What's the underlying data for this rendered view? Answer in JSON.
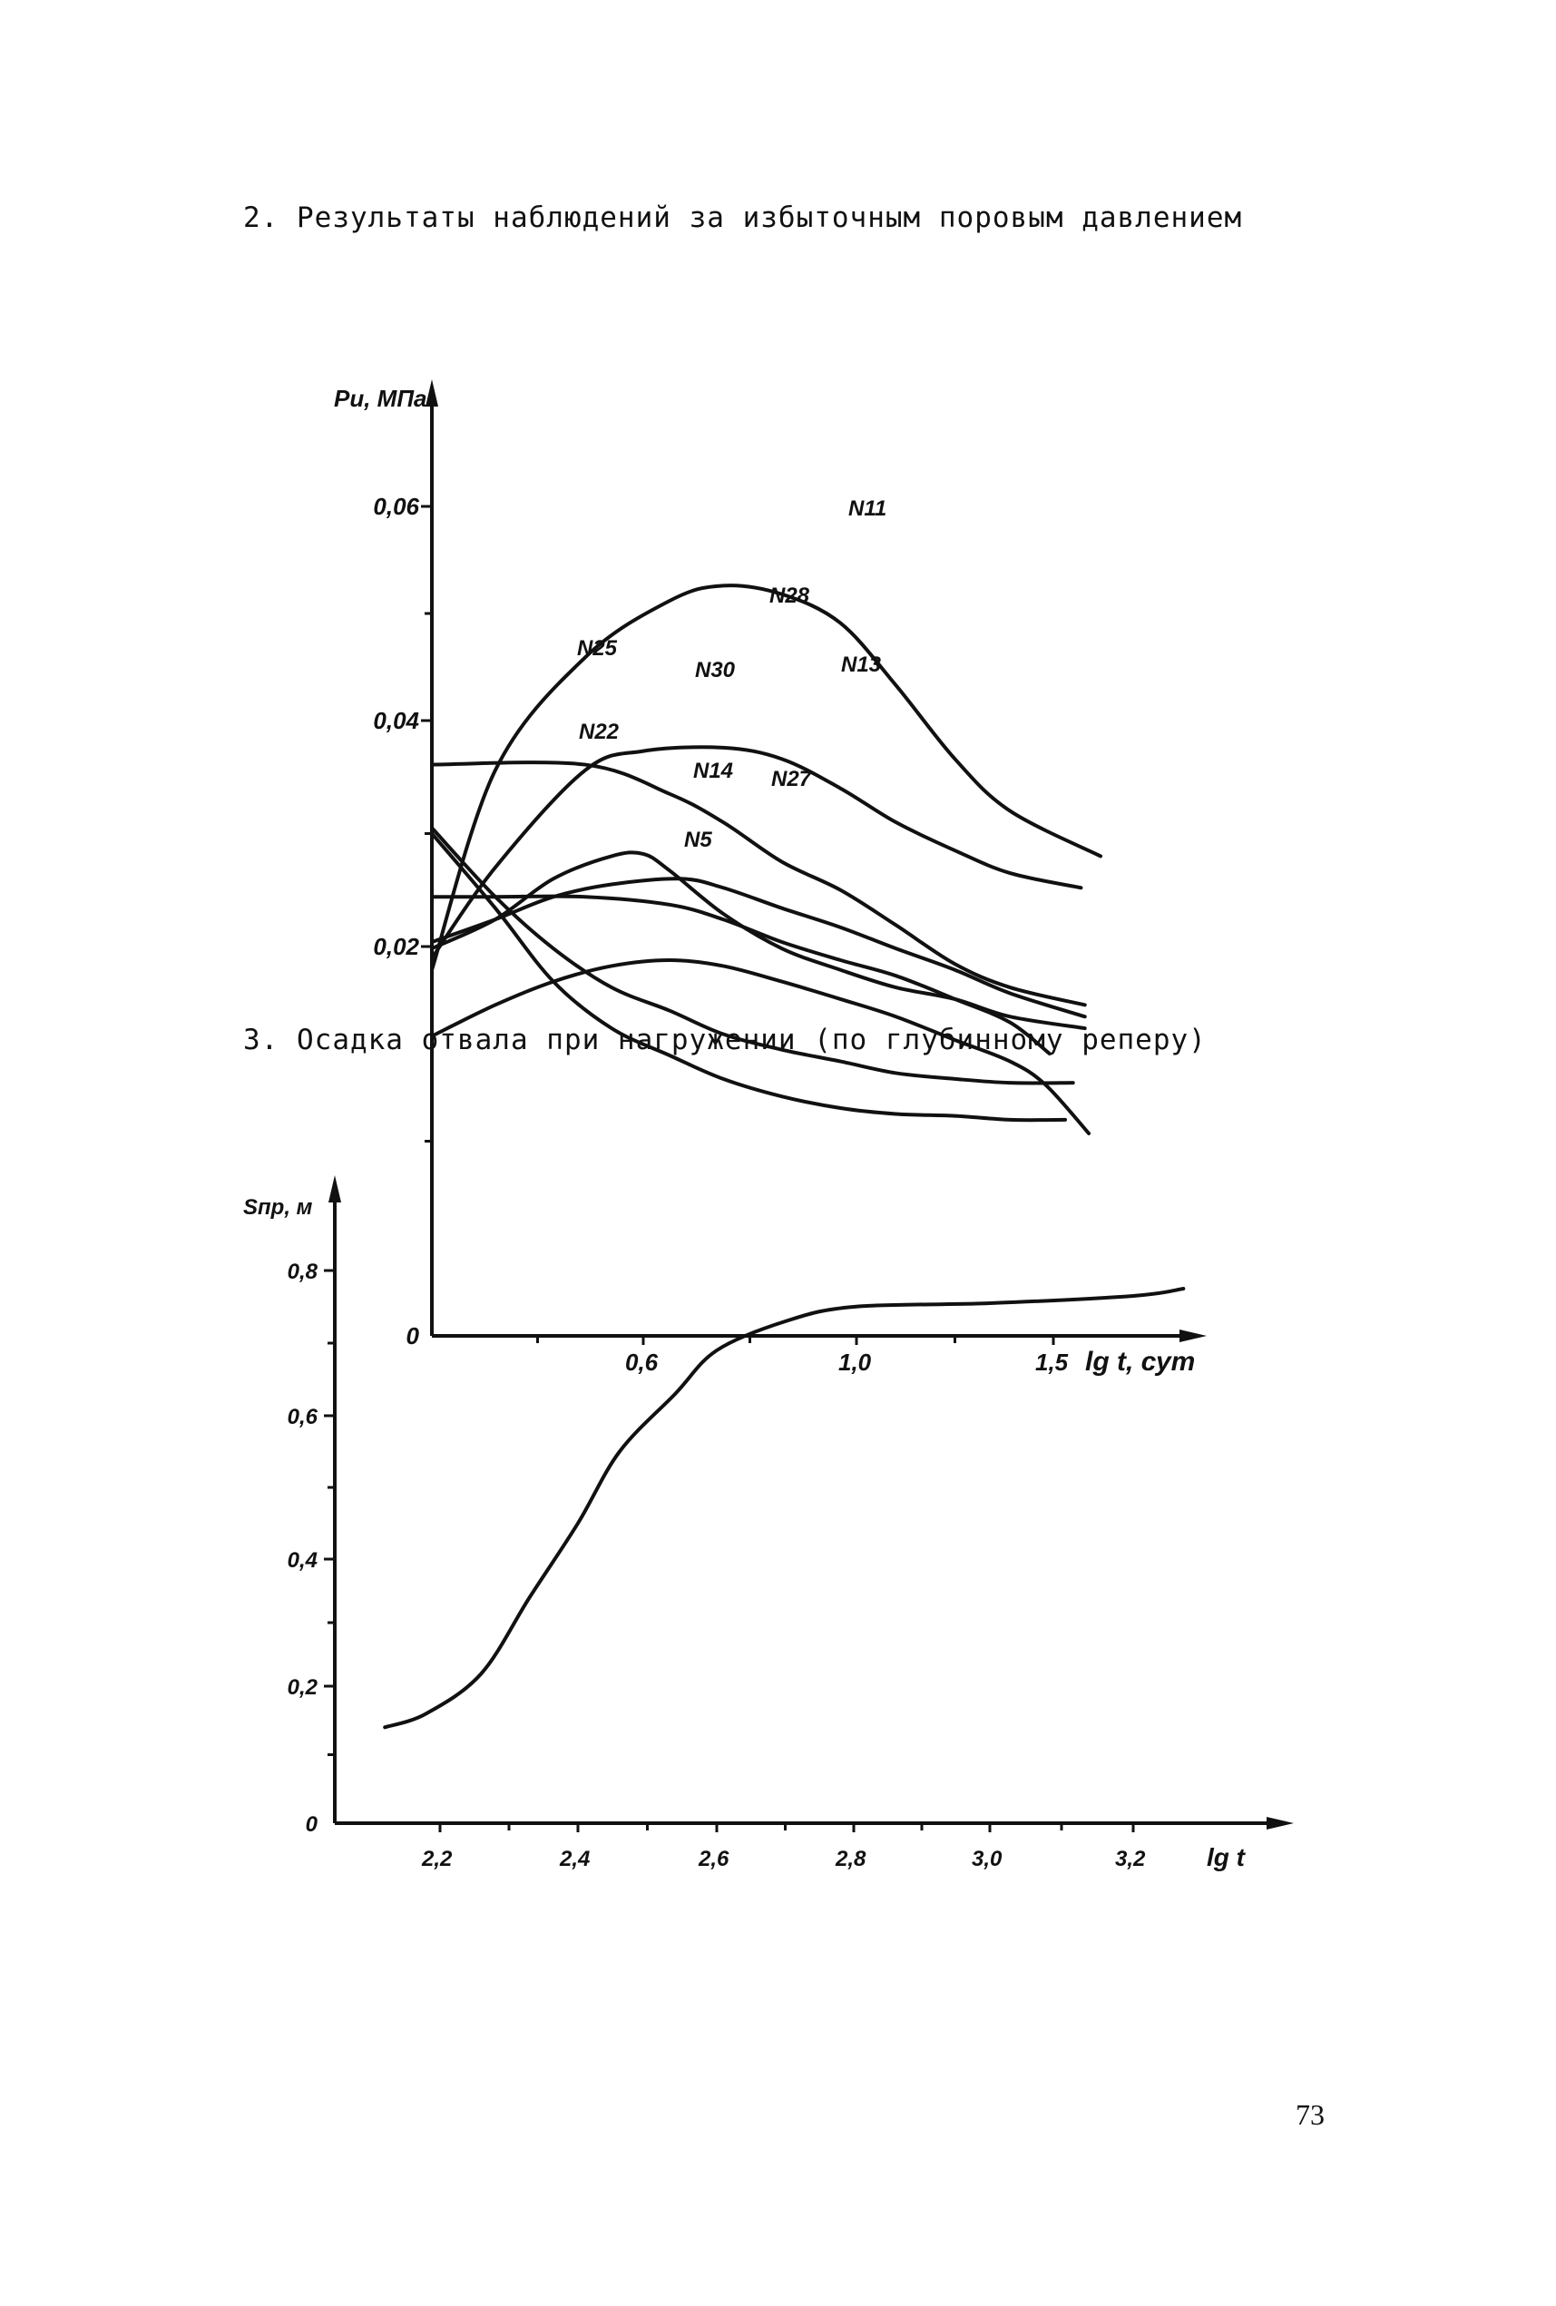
{
  "section2_title": "2. Результаты наблюдений за избыточным поровым давлением",
  "section3_title": "3. Осадка отвала при нагружении (по глубинному реперу)",
  "page_number": "73",
  "chart_data": [
    {
      "type": "line",
      "title": "Результаты наблюдений за избыточным поровым давлением",
      "xlabel": "lg t, сут",
      "ylabel": "Pи, МПа",
      "x_ticks": [
        {
          "v": 0.6,
          "label": "0,6"
        },
        {
          "v": 1.0,
          "label": "1,0"
        },
        {
          "v": 1.5,
          "label": "1,5"
        }
      ],
      "y_ticks": [
        {
          "v": 0,
          "label": "0"
        },
        {
          "v": 0.02,
          "label": "0,02"
        },
        {
          "v": 0.04,
          "label": "0,04"
        },
        {
          "v": 0.06,
          "label": "0,06"
        }
      ],
      "y_minor_ticks": [
        0.01,
        0.03,
        0.05
      ],
      "x_minor_ticks": [
        0.4,
        0.8,
        1.25
      ],
      "xlim": [
        0.2,
        1.7
      ],
      "ylim": [
        0,
        0.07
      ],
      "grid": false,
      "series": [
        {
          "name": "N11",
          "points": [
            [
              0.2,
              0.0188
            ],
            [
              0.32,
              0.0356
            ],
            [
              0.49,
              0.0459
            ],
            [
              0.65,
              0.0512
            ],
            [
              0.75,
              0.0526
            ],
            [
              0.86,
              0.0518
            ],
            [
              0.97,
              0.0491
            ],
            [
              1.1,
              0.0433
            ],
            [
              1.25,
              0.0366
            ],
            [
              1.39,
              0.032
            ],
            [
              1.62,
              0.028
            ]
          ]
        },
        {
          "name": "N28",
          "points": [
            [
              0.2,
              0.0194
            ],
            [
              0.32,
              0.027
            ],
            [
              0.49,
              0.0356
            ],
            [
              0.6,
              0.0373
            ],
            [
              0.75,
              0.0376
            ],
            [
              0.86,
              0.0366
            ],
            [
              0.97,
              0.034
            ],
            [
              1.1,
              0.031
            ],
            [
              1.25,
              0.0285
            ],
            [
              1.39,
              0.0265
            ],
            [
              1.57,
              0.0252
            ]
          ]
        },
        {
          "name": "N13",
          "points": [
            [
              0.2,
              0.0361
            ],
            [
              0.49,
              0.0361
            ],
            [
              0.65,
              0.0335
            ],
            [
              0.75,
              0.031
            ],
            [
              0.86,
              0.0275
            ],
            [
              0.97,
              0.025
            ],
            [
              1.1,
              0.0219
            ],
            [
              1.25,
              0.0191
            ],
            [
              1.39,
              0.0179
            ],
            [
              1.58,
              0.017
            ]
          ]
        },
        {
          "name": "N25",
          "points": [
            [
              0.2,
              0.0199
            ],
            [
              0.32,
              0.0224
            ],
            [
              0.43,
              0.026
            ],
            [
              0.54,
              0.028
            ],
            [
              0.6,
              0.0282
            ],
            [
              0.65,
              0.0267
            ],
            [
              0.75,
              0.0229
            ],
            [
              0.86,
              0.0199
            ],
            [
              0.97,
              0.0188
            ],
            [
              1.1,
              0.0179
            ],
            [
              1.25,
              0.0173
            ],
            [
              1.39,
              0.0164
            ],
            [
              1.58,
              0.0158
            ]
          ]
        },
        {
          "name": "N30",
          "points": [
            [
              0.2,
              0.0204
            ],
            [
              0.32,
              0.0224
            ],
            [
              0.43,
              0.0244
            ],
            [
              0.54,
              0.0255
            ],
            [
              0.67,
              0.026
            ],
            [
              0.75,
              0.0252
            ],
            [
              0.86,
              0.0234
            ],
            [
              0.97,
              0.0217
            ],
            [
              1.1,
              0.0199
            ],
            [
              1.25,
              0.0188
            ],
            [
              1.39,
              0.0176
            ],
            [
              1.58,
              0.0164
            ]
          ]
        },
        {
          "name": "N22",
          "points": [
            [
              0.2,
              0.0244
            ],
            [
              0.32,
              0.0244
            ],
            [
              0.49,
              0.0244
            ],
            [
              0.65,
              0.0237
            ],
            [
              0.75,
              0.0224
            ],
            [
              0.86,
              0.0204
            ],
            [
              0.97,
              0.0193
            ],
            [
              1.1,
              0.0185
            ],
            [
              1.25,
              0.0173
            ],
            [
              1.39,
              0.0161
            ],
            [
              1.49,
              0.0145
            ]
          ]
        },
        {
          "name": "N14",
          "points": [
            [
              0.2,
              0.0305
            ],
            [
              0.32,
              0.0244
            ],
            [
              0.43,
              0.0199
            ],
            [
              0.54,
              0.0179
            ],
            [
              0.65,
              0.0167
            ],
            [
              0.75,
              0.0155
            ],
            [
              0.86,
              0.0147
            ],
            [
              0.97,
              0.0141
            ],
            [
              1.1,
              0.0135
            ],
            [
              1.25,
              0.0132
            ],
            [
              1.39,
              0.013
            ],
            [
              1.55,
              0.013
            ]
          ]
        },
        {
          "name": "N27",
          "points": [
            [
              0.2,
              0.0154
            ],
            [
              0.32,
              0.017
            ],
            [
              0.43,
              0.0182
            ],
            [
              0.54,
              0.019
            ],
            [
              0.65,
              0.0193
            ],
            [
              0.75,
              0.019
            ],
            [
              0.86,
              0.0182
            ],
            [
              0.97,
              0.0173
            ],
            [
              1.1,
              0.0164
            ],
            [
              1.25,
              0.0152
            ],
            [
              1.39,
              0.0141
            ],
            [
              1.48,
              0.0129
            ],
            [
              1.59,
              0.0104
            ]
          ]
        },
        {
          "name": "N5",
          "points": [
            [
              0.2,
              0.03
            ],
            [
              0.32,
              0.0234
            ],
            [
              0.43,
              0.0182
            ],
            [
              0.54,
              0.0158
            ],
            [
              0.65,
              0.0144
            ],
            [
              0.75,
              0.0132
            ],
            [
              0.86,
              0.0123
            ],
            [
              0.97,
              0.0117
            ],
            [
              1.1,
              0.0114
            ],
            [
              1.25,
              0.0113
            ],
            [
              1.39,
              0.0111
            ],
            [
              1.53,
              0.0111
            ]
          ]
        }
      ]
    },
    {
      "type": "line",
      "title": "Осадка отвала при нагружении (по глубинному реперу)",
      "xlabel": "lg t",
      "ylabel": "Sпр, м",
      "x_ticks": [
        {
          "v": 2.2,
          "label": "2,2"
        },
        {
          "v": 2.4,
          "label": "2,4"
        },
        {
          "v": 2.6,
          "label": "2,6"
        },
        {
          "v": 2.8,
          "label": "2,8"
        },
        {
          "v": 3.0,
          "label": "3,0"
        },
        {
          "v": 3.2,
          "label": "3,2"
        }
      ],
      "y_ticks": [
        {
          "v": 0,
          "label": "0"
        },
        {
          "v": 0.2,
          "label": "0,2"
        },
        {
          "v": 0.4,
          "label": "0,4"
        },
        {
          "v": 0.6,
          "label": "0,6"
        },
        {
          "v": 0.8,
          "label": "0,8"
        }
      ],
      "x_minor_ticks": [
        2.3,
        2.5,
        2.7,
        2.9,
        3.1
      ],
      "y_minor_ticks": [
        0.1,
        0.3,
        0.5,
        0.7
      ],
      "xlim": [
        2.05,
        3.4
      ],
      "ylim": [
        0,
        0.9
      ],
      "grid": false,
      "series": [
        {
          "name": "S",
          "points": [
            [
              2.12,
              0.14
            ],
            [
              2.18,
              0.16
            ],
            [
              2.26,
              0.22
            ],
            [
              2.33,
              0.34
            ],
            [
              2.4,
              0.45
            ],
            [
              2.46,
              0.55
            ],
            [
              2.54,
              0.63
            ],
            [
              2.6,
              0.69
            ],
            [
              2.7,
              0.73
            ],
            [
              2.8,
              0.75
            ],
            [
              3.0,
              0.755
            ],
            [
              3.2,
              0.765
            ],
            [
              3.27,
              0.775
            ]
          ]
        }
      ]
    }
  ]
}
